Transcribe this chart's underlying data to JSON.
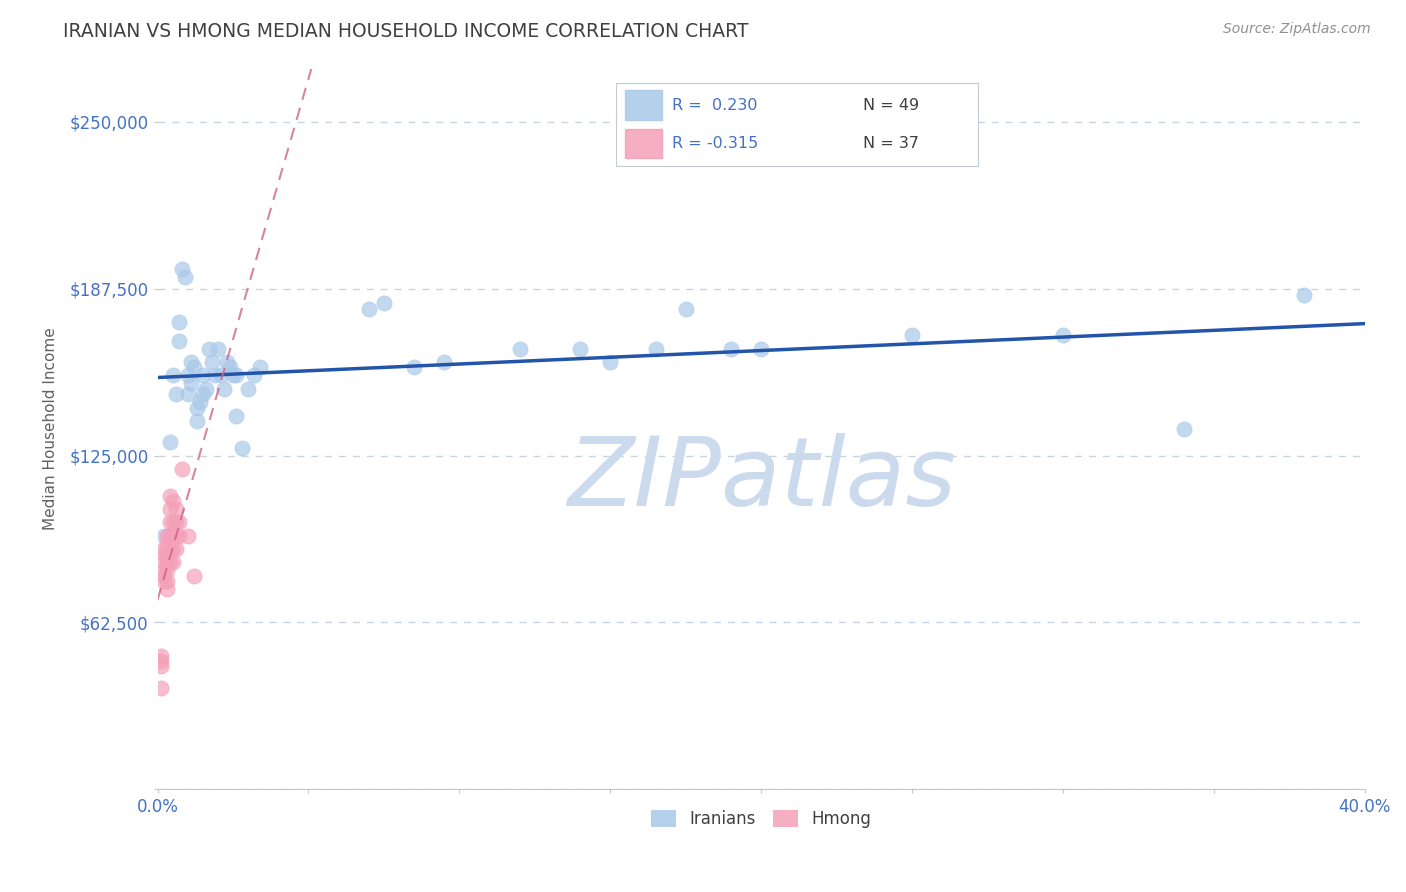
{
  "title": "IRANIAN VS HMONG MEDIAN HOUSEHOLD INCOME CORRELATION CHART",
  "source_text": "Source: ZipAtlas.com",
  "ylabel": "Median Household Income",
  "xlim": [
    0.0,
    0.4
  ],
  "ylim": [
    0,
    270000
  ],
  "yticks": [
    0,
    62500,
    125000,
    187500,
    250000
  ],
  "ytick_labels": [
    "",
    "$62,500",
    "$125,000",
    "$187,500",
    "$250,000"
  ],
  "xticks": [
    0.0,
    0.05,
    0.1,
    0.15,
    0.2,
    0.25,
    0.3,
    0.35,
    0.4
  ],
  "xtick_labels": [
    "0.0%",
    "",
    "",
    "",
    "",
    "",
    "",
    "",
    "40.0%"
  ],
  "iranian_color": "#a8c8e8",
  "hmong_color": "#f4a0b8",
  "iranian_line_color": "#2255aa",
  "hmong_line_color": "#cc6688",
  "watermark_text": "ZIPatlas",
  "watermark_color": "#ccdaee",
  "iranians_scatter": [
    [
      0.002,
      95000
    ],
    [
      0.004,
      130000
    ],
    [
      0.005,
      155000
    ],
    [
      0.006,
      148000
    ],
    [
      0.007,
      168000
    ],
    [
      0.007,
      175000
    ],
    [
      0.008,
      195000
    ],
    [
      0.009,
      192000
    ],
    [
      0.01,
      155000
    ],
    [
      0.01,
      148000
    ],
    [
      0.011,
      160000
    ],
    [
      0.011,
      152000
    ],
    [
      0.012,
      158000
    ],
    [
      0.013,
      143000
    ],
    [
      0.013,
      138000
    ],
    [
      0.014,
      145000
    ],
    [
      0.015,
      155000
    ],
    [
      0.015,
      148000
    ],
    [
      0.016,
      150000
    ],
    [
      0.017,
      165000
    ],
    [
      0.018,
      160000
    ],
    [
      0.019,
      155000
    ],
    [
      0.02,
      165000
    ],
    [
      0.021,
      155000
    ],
    [
      0.022,
      150000
    ],
    [
      0.023,
      160000
    ],
    [
      0.024,
      158000
    ],
    [
      0.025,
      155000
    ],
    [
      0.026,
      140000
    ],
    [
      0.026,
      155000
    ],
    [
      0.028,
      128000
    ],
    [
      0.03,
      150000
    ],
    [
      0.032,
      155000
    ],
    [
      0.034,
      158000
    ],
    [
      0.07,
      180000
    ],
    [
      0.075,
      182000
    ],
    [
      0.085,
      158000
    ],
    [
      0.095,
      160000
    ],
    [
      0.12,
      165000
    ],
    [
      0.14,
      165000
    ],
    [
      0.15,
      160000
    ],
    [
      0.165,
      165000
    ],
    [
      0.175,
      180000
    ],
    [
      0.19,
      165000
    ],
    [
      0.2,
      165000
    ],
    [
      0.25,
      170000
    ],
    [
      0.3,
      170000
    ],
    [
      0.34,
      135000
    ],
    [
      0.38,
      185000
    ]
  ],
  "hmong_scatter": [
    [
      0.001,
      50000
    ],
    [
      0.001,
      48000
    ],
    [
      0.001,
      46000
    ],
    [
      0.002,
      90000
    ],
    [
      0.002,
      88000
    ],
    [
      0.002,
      85000
    ],
    [
      0.002,
      82000
    ],
    [
      0.002,
      80000
    ],
    [
      0.002,
      78000
    ],
    [
      0.003,
      95000
    ],
    [
      0.003,
      92000
    ],
    [
      0.003,
      88000
    ],
    [
      0.003,
      85000
    ],
    [
      0.003,
      82000
    ],
    [
      0.003,
      78000
    ],
    [
      0.003,
      75000
    ],
    [
      0.004,
      110000
    ],
    [
      0.004,
      105000
    ],
    [
      0.004,
      100000
    ],
    [
      0.004,
      95000
    ],
    [
      0.004,
      90000
    ],
    [
      0.004,
      85000
    ],
    [
      0.005,
      108000
    ],
    [
      0.005,
      100000
    ],
    [
      0.005,
      95000
    ],
    [
      0.005,
      90000
    ],
    [
      0.005,
      85000
    ],
    [
      0.006,
      105000
    ],
    [
      0.006,
      100000
    ],
    [
      0.006,
      95000
    ],
    [
      0.006,
      90000
    ],
    [
      0.007,
      100000
    ],
    [
      0.007,
      95000
    ],
    [
      0.008,
      120000
    ],
    [
      0.01,
      95000
    ],
    [
      0.012,
      80000
    ],
    [
      0.001,
      38000
    ]
  ],
  "background_color": "#ffffff",
  "grid_color": "#c8d4e4",
  "title_color": "#404040",
  "axis_label_color": "#606060",
  "r_value_color": "#4472c4",
  "legend_text_color": "#404040",
  "legend_N_color": "#404040"
}
